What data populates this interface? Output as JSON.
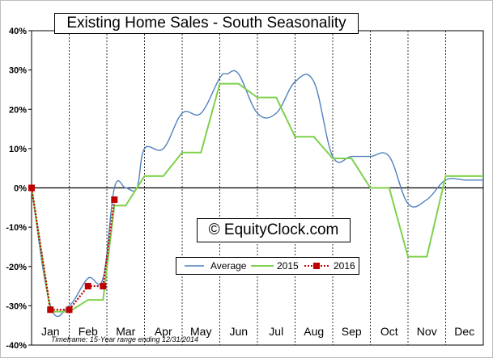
{
  "chart_data": {
    "type": "line",
    "title": "Existing Home Sales - South Seasonality",
    "watermark": "EquityClock.com",
    "footnote": "Timeframe: 15-Year range ending 12/31/2014",
    "categories": [
      "Jan",
      "Feb",
      "Mar",
      "Apr",
      "May",
      "Jun",
      "Jul",
      "Aug",
      "Sep",
      "Oct",
      "Nov",
      "Dec"
    ],
    "y_ticks": [
      "40%",
      "30%",
      "20%",
      "10%",
      "0%",
      "-10%",
      "-20%",
      "-30%",
      "-40%"
    ],
    "ylim": [
      -40,
      40
    ],
    "grid": "vertical dashed between months",
    "legend_placement": "bottom-center",
    "series": [
      {
        "name": "Average",
        "color": "#4f81bd",
        "style": "smooth line",
        "x": [
          0,
          0.5,
          1.0,
          1.5,
          1.9,
          2.2,
          2.5,
          2.8,
          3.0,
          3.5,
          4.0,
          4.5,
          5.0,
          5.2,
          5.5,
          6.0,
          6.5,
          7.0,
          7.5,
          8.0,
          8.5,
          9.0,
          9.5,
          10.0,
          10.5,
          11.0,
          11.5,
          11.8,
          12.0
        ],
        "values": [
          0,
          -30,
          -30,
          -23,
          -23,
          0,
          0,
          0,
          10,
          10,
          19,
          19,
          28,
          29,
          29,
          19,
          19,
          27,
          27,
          8,
          8,
          8,
          8,
          -4,
          -3,
          2,
          2,
          2,
          2
        ]
      },
      {
        "name": "2015",
        "color": "#7ed14c",
        "style": "step line",
        "x": [
          0,
          0.5,
          1.0,
          1.5,
          1.9,
          2.2,
          2.5,
          3.0,
          3.5,
          4.0,
          4.5,
          5.0,
          5.5,
          6.0,
          6.5,
          7.0,
          7.5,
          8.0,
          8.5,
          9.0,
          9.5,
          10.0,
          10.5,
          11.0,
          11.5,
          12.0
        ],
        "values": [
          0,
          -31.5,
          -31.5,
          -28.5,
          -28.5,
          -4.5,
          -4.5,
          3,
          3,
          9,
          9,
          26.5,
          26.5,
          23,
          23,
          13,
          13,
          7.5,
          7.5,
          0,
          0,
          -17.5,
          -17.5,
          3,
          3,
          3
        ]
      },
      {
        "name": "2016",
        "color": "#c00000",
        "style": "dotted line with square markers",
        "x": [
          0,
          0.5,
          1.0,
          1.5,
          1.9,
          2.2
        ],
        "values": [
          0,
          -31,
          -31,
          -25,
          -25,
          -3
        ]
      }
    ]
  }
}
